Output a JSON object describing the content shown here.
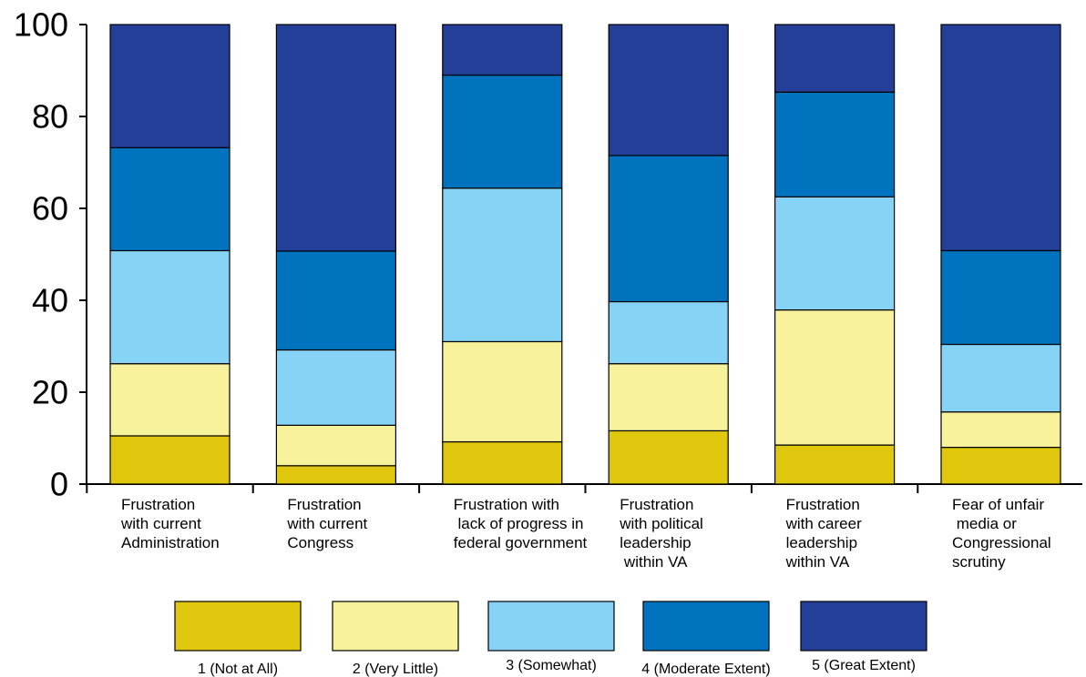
{
  "chart_data": {
    "type": "bar",
    "stacked": true,
    "ylim": [
      0,
      100
    ],
    "yticks": [
      0,
      20,
      40,
      60,
      80,
      100
    ],
    "grid": false,
    "legend_placement": "bottom",
    "categories": [
      [
        "Frustration",
        "with current",
        "Administration"
      ],
      [
        "Frustration",
        "with current",
        "Congress"
      ],
      [
        "Frustration with",
        " lack of progress in",
        "federal government"
      ],
      [
        "Frustration",
        "with political",
        "leadership",
        " within VA"
      ],
      [
        "Frustration",
        "with career",
        "leadership",
        "within VA"
      ],
      [
        "Fear of unfair",
        " media or",
        "Congressional",
        "scrutiny"
      ]
    ],
    "series": [
      {
        "name": "1 (Not at All)",
        "color": "#dec70c",
        "values": [
          10.5,
          4.0,
          9.2,
          11.6,
          8.5,
          8.0
        ]
      },
      {
        "name": "2 (Very Little)",
        "color": "#f9f29c",
        "values": [
          15.7,
          8.8,
          21.8,
          14.6,
          29.4,
          7.7
        ]
      },
      {
        "name": "3 (Somewhat)",
        "color": "#86d3f6",
        "values": [
          24.6,
          16.4,
          33.4,
          13.5,
          24.6,
          14.7
        ]
      },
      {
        "name": "4 (Moderate Extent)",
        "color": "#0073be",
        "values": [
          22.4,
          21.5,
          24.6,
          31.8,
          22.8,
          20.4
        ]
      },
      {
        "name": "5 (Great Extent)",
        "color": "#233f98",
        "values": [
          26.8,
          49.3,
          11.0,
          28.5,
          14.7,
          49.2
        ]
      }
    ]
  }
}
